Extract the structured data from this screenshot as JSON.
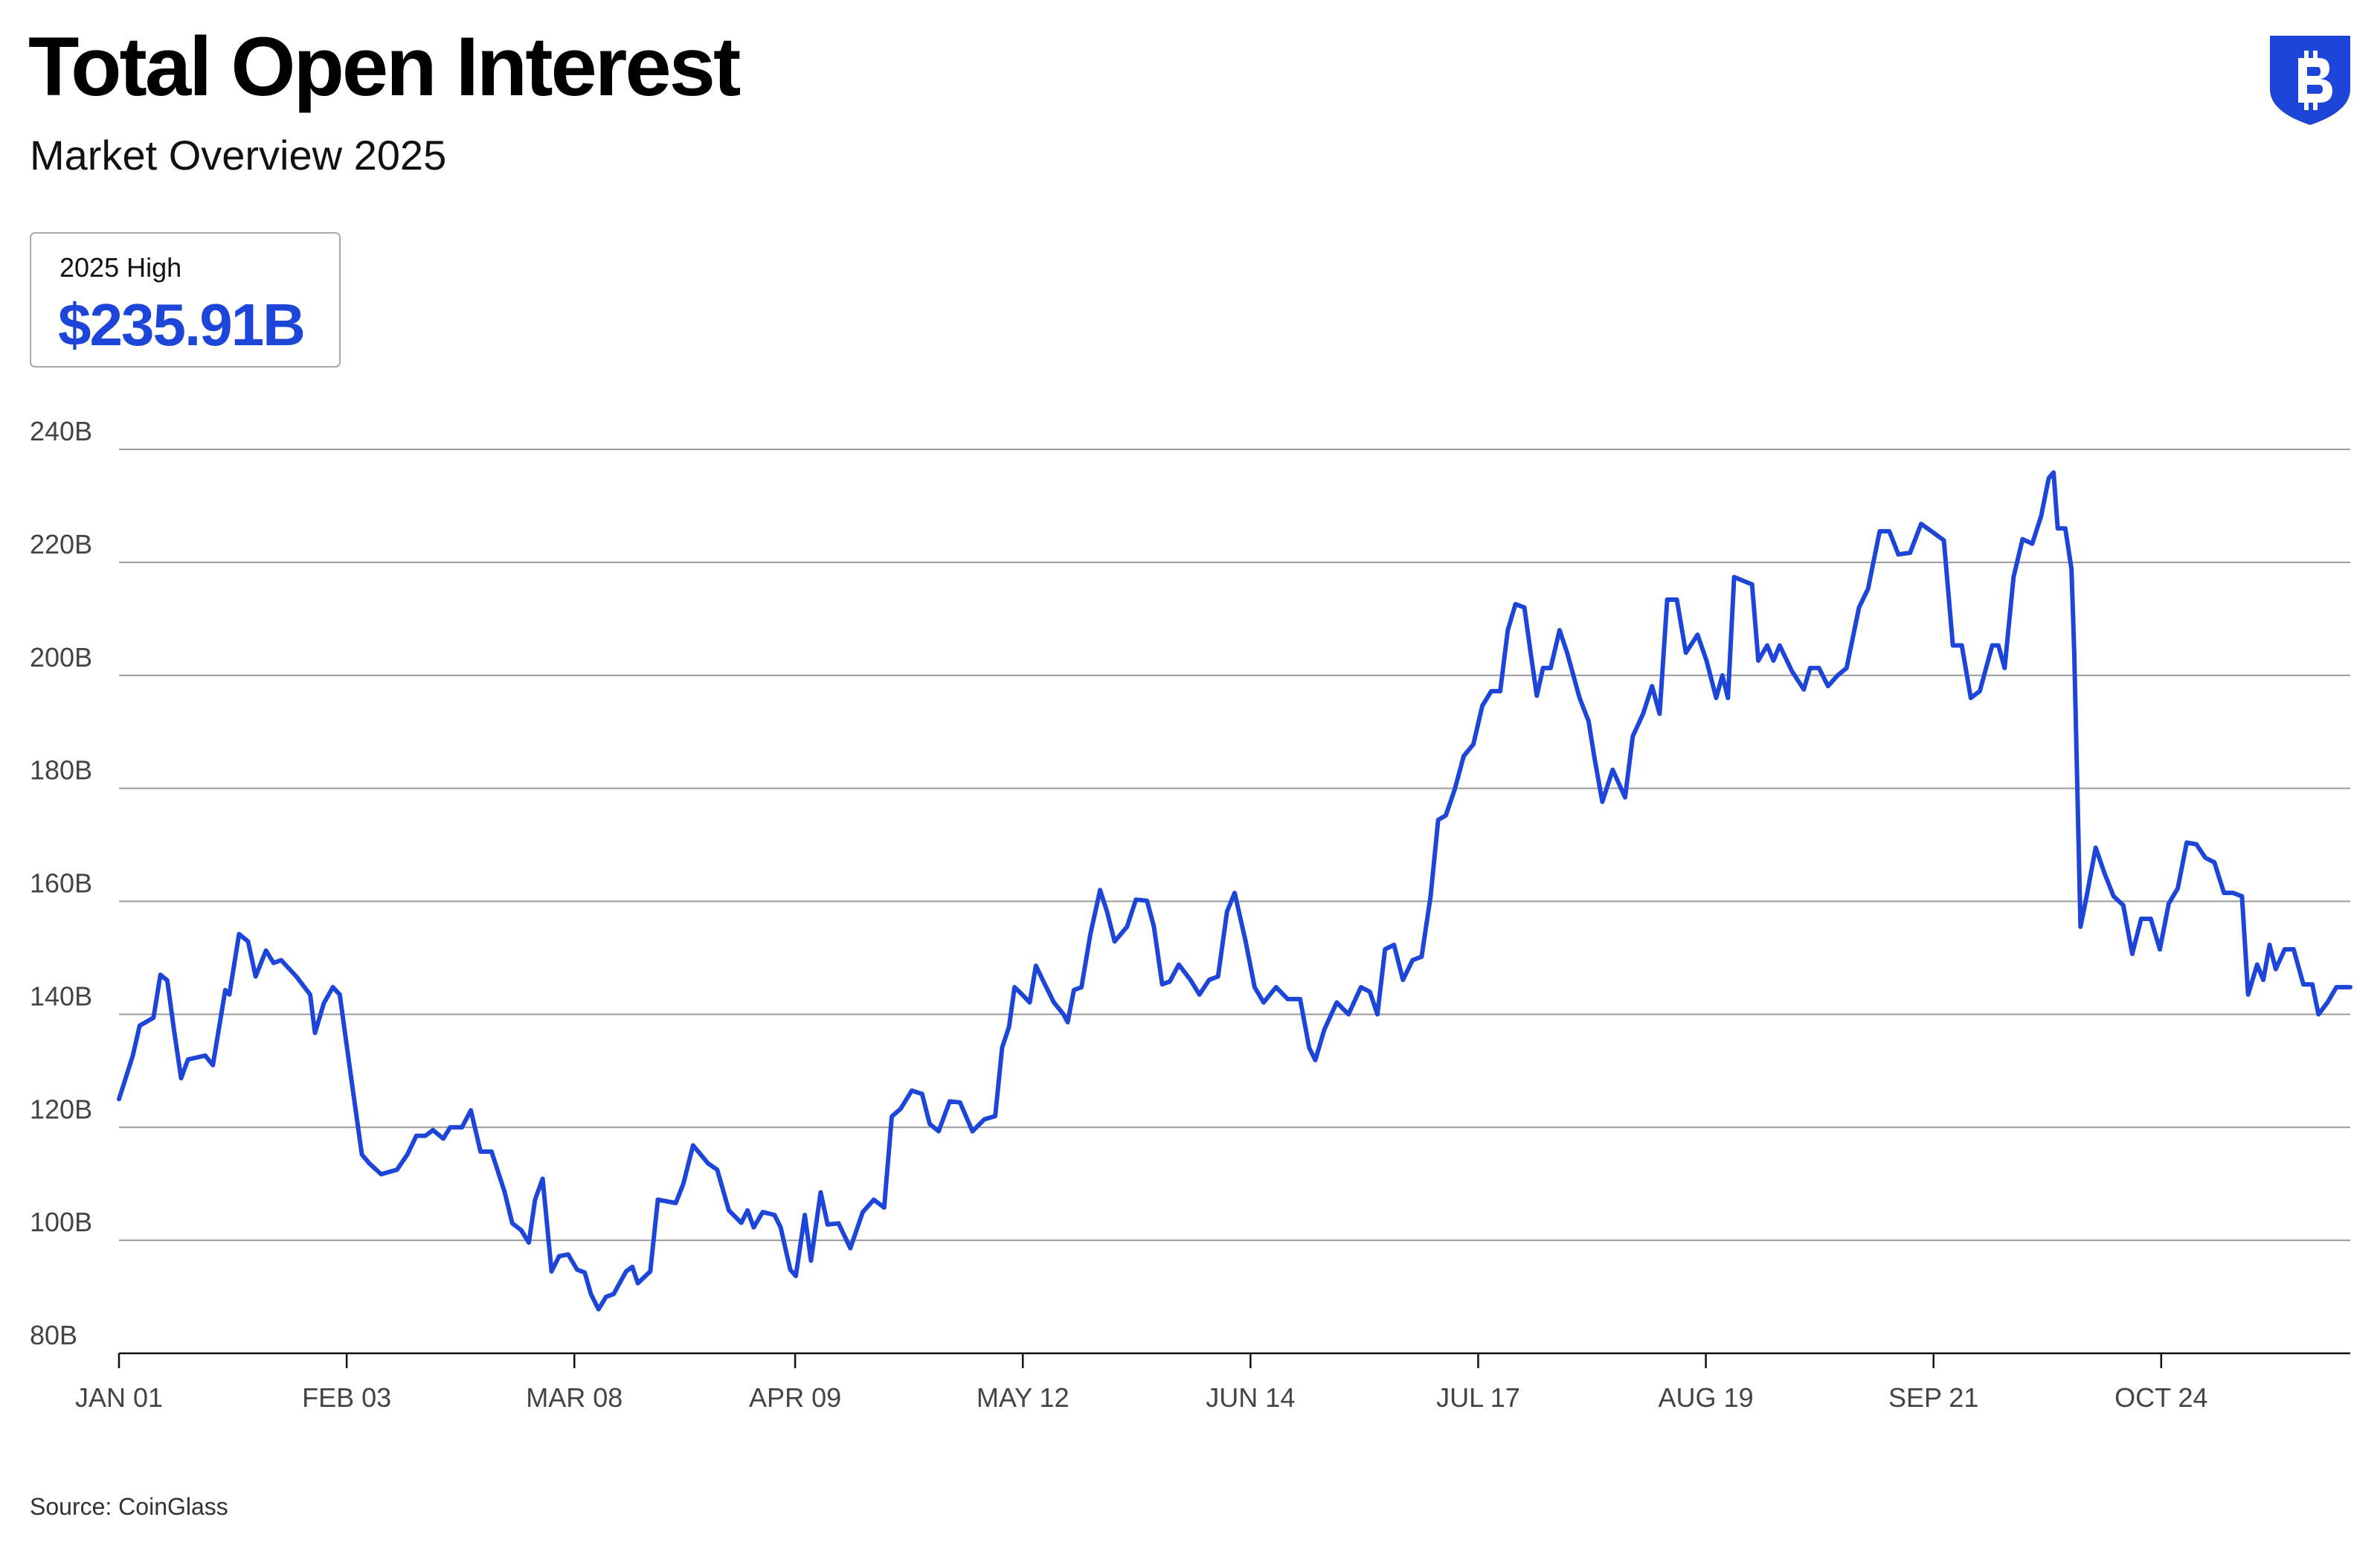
{
  "chart_data": {
    "type": "line",
    "title": "Total Open Interest",
    "subtitle": "Market Overview 2025",
    "highlight": {
      "label": "2025 High",
      "value": "$235.91B"
    },
    "source": "Source: CoinGlass",
    "color": "#1d46d8",
    "grid": true,
    "xlim": [
      0,
      323.4
    ],
    "xticks": [
      {
        "value": 0,
        "label": "JAN 01"
      },
      {
        "value": 33,
        "label": "FEB 03"
      },
      {
        "value": 66,
        "label": "MAR 08"
      },
      {
        "value": 98,
        "label": "APR 09"
      },
      {
        "value": 131,
        "label": "MAY 12"
      },
      {
        "value": 164,
        "label": "JUN 14"
      },
      {
        "value": 197,
        "label": "JUL 17"
      },
      {
        "value": 230,
        "label": "AUG 19"
      },
      {
        "value": 263,
        "label": "SEP 21"
      },
      {
        "value": 296,
        "label": "OCT 24"
      }
    ],
    "ylim": [
      80,
      240
    ],
    "yticks": [
      {
        "value": 80,
        "label": "80B"
      },
      {
        "value": 100,
        "label": "100B"
      },
      {
        "value": 120,
        "label": "120B"
      },
      {
        "value": 140,
        "label": "140B"
      },
      {
        "value": 160,
        "label": "160B"
      },
      {
        "value": 180,
        "label": "180B"
      },
      {
        "value": 200,
        "label": "200B"
      },
      {
        "value": 220,
        "label": "220B"
      },
      {
        "value": 240,
        "label": "240B"
      }
    ],
    "x": [
      0,
      2,
      3,
      5,
      6,
      7,
      8,
      9,
      10,
      12.5,
      13.6,
      15.4,
      16,
      17.4,
      18.7,
      19.8,
      21.3,
      22.4,
      23.5,
      25.7,
      27.7,
      28.4,
      29.7,
      31,
      32,
      33.4,
      35.2,
      36.3,
      38,
      40.3,
      41.8,
      43.1,
      44.4,
      45.5,
      47,
      48,
      49.7,
      51,
      52.4,
      54,
      55.9,
      57,
      58.3,
      59.4,
      60.3,
      61.4,
      62.7,
      63.8,
      65.1,
      66.4,
      67.5,
      68.4,
      69.5,
      70.6,
      71.7,
      73.5,
      74.4,
      75.2,
      77,
      78.1,
      80.7,
      81.8,
      83.2,
      85.4,
      86.7,
      88.4,
      90.2,
      91.1,
      92,
      93.3,
      95,
      95.9,
      97.3,
      98.1,
      99.4,
      100.3,
      101.7,
      102.7,
      104.3,
      106,
      107.8,
      109.4,
      110.9,
      112,
      113.3,
      114.9,
      116.4,
      117.5,
      118.8,
      120.4,
      121.9,
      123.7,
      125.4,
      127,
      128,
      129,
      129.8,
      130.9,
      132,
      132.9,
      134.2,
      135.5,
      136.9,
      137.5,
      138.4,
      139.5,
      140.8,
      142.2,
      143.2,
      144.3,
      146.1,
      147.4,
      149,
      150,
      151.2,
      152.3,
      153.6,
      155.3,
      156.6,
      158,
      159.3,
      160.6,
      161.7,
      163.3,
      164.6,
      165.9,
      167.7,
      169.4,
      171.2,
      172.5,
      173.4,
      174.7,
      176.5,
      178.2,
      180,
      181.3,
      182.4,
      183.5,
      184.8,
      186.1,
      187.5,
      188.8,
      190.1,
      191.2,
      192.3,
      193.6,
      194.9,
      196.3,
      197.6,
      198.9,
      200.2,
      201.3,
      202.4,
      203.7,
      204.6,
      205.5,
      206.4,
      207.5,
      208.8,
      209.9,
      211.7,
      213,
      213.9,
      215,
      216.5,
      218.3,
      219.4,
      220.9,
      222.2,
      223.3,
      224.4,
      225.8,
      227.1,
      228.8,
      230.1,
      231.5,
      232.4,
      233.2,
      234.1,
      236.7,
      237.6,
      238.9,
      239.8,
      240.7,
      242.5,
      244.2,
      245.1,
      246.4,
      247.7,
      249.1,
      250.4,
      252.2,
      253.5,
      255.2,
      256.6,
      257.9,
      259.6,
      261.2,
      262.7,
      264.5,
      265.8,
      267.1,
      268.4,
      269.7,
      271.5,
      272.4,
      273.3,
      274.6,
      275.9,
      277.3,
      278.6,
      279.7,
      280.4,
      281,
      282.1,
      283,
      283.4,
      284.3,
      285.2,
      286.5,
      287.8,
      289.1,
      290.5,
      291.8,
      293.1,
      294.5,
      295.8,
      297.1,
      298.4,
      299.7,
      301.1,
      302.4,
      303.7,
      305.1,
      306.4,
      307.7,
      308.6,
      309.9,
      310.8,
      311.7,
      312.6,
      313.9,
      315.2,
      316.6,
      317.9,
      318.8,
      320.1,
      321.4,
      323.4
    ],
    "values": [
      125,
      132.7,
      138,
      139.4,
      147,
      146,
      137,
      128.7,
      132,
      132.7,
      131,
      144.3,
      143.5,
      154.2,
      152.9,
      146.7,
      151.3,
      149.1,
      149.6,
      146.7,
      143.5,
      136.7,
      142,
      144.8,
      143.5,
      131,
      115.2,
      113.6,
      111.7,
      112.5,
      115.2,
      118.5,
      118.5,
      119.5,
      118,
      120,
      120,
      123,
      115.7,
      115.7,
      108.5,
      103,
      101.8,
      99.6,
      107.2,
      110.9,
      94.5,
      97.2,
      97.5,
      94.8,
      94.3,
      90.5,
      87.8,
      90,
      90.5,
      94.5,
      95.3,
      92.4,
      94.5,
      107.2,
      106.6,
      110,
      116.8,
      113.6,
      112.5,
      105.3,
      103.1,
      105.3,
      102.3,
      105,
      104.5,
      102.3,
      94.8,
      93.7,
      104.5,
      96.4,
      108.5,
      102.8,
      103,
      98.6,
      105,
      107.2,
      105.8,
      121.9,
      123.3,
      126.5,
      125.9,
      120.6,
      119.3,
      124.6,
      124.4,
      119.3,
      121.4,
      122,
      134.1,
      137.8,
      144.8,
      143.5,
      142.1,
      148.6,
      145.3,
      142.1,
      140,
      138.6,
      144.3,
      144.8,
      154.2,
      162,
      158.2,
      152.9,
      155.5,
      160.3,
      160.1,
      155.5,
      145.3,
      145.8,
      148.8,
      146.1,
      143.5,
      146.1,
      146.7,
      158.2,
      161.5,
      152.9,
      144.8,
      142.1,
      144.8,
      142.7,
      142.7,
      134.1,
      131.9,
      137.3,
      142.1,
      140,
      144.8,
      144,
      140,
      151.5,
      152.3,
      146.1,
      149.6,
      150.2,
      160.9,
      174.4,
      175.2,
      179.8,
      185.7,
      187.8,
      194.6,
      197.2,
      197.2,
      208,
      212.6,
      212,
      204,
      196.4,
      201.3,
      201.3,
      208,
      204,
      196,
      191.9,
      185.1,
      177.6,
      183.3,
      178.4,
      189.2,
      193.2,
      198.1,
      193.2,
      213.4,
      213.4,
      204,
      207.2,
      202.6,
      196,
      200,
      196,
      217.4,
      216.1,
      202.6,
      205.3,
      202.6,
      205.3,
      200.7,
      197.5,
      201.3,
      201.3,
      198.1,
      200,
      201.3,
      212,
      215.3,
      225.5,
      225.5,
      221.4,
      221.7,
      226.8,
      225.5,
      223.9,
      205.3,
      205.3,
      196,
      197.2,
      205.3,
      205.3,
      201.3,
      217.4,
      224.1,
      223.3,
      228.2,
      234.9,
      235.9,
      226,
      226,
      218.8,
      204,
      155.5,
      160.9,
      169.5,
      164.9,
      160.9,
      159.3,
      150.7,
      156.9,
      156.9,
      151.5,
      159.6,
      162.3,
      170.4,
      170.1,
      167.7,
      166.9,
      161.5,
      161.5,
      160.9,
      143.5,
      148.8,
      146.1,
      152.3,
      148,
      151.5,
      151.5,
      145.3,
      145.3,
      140,
      142.1,
      144.8,
      144.8
    ]
  }
}
